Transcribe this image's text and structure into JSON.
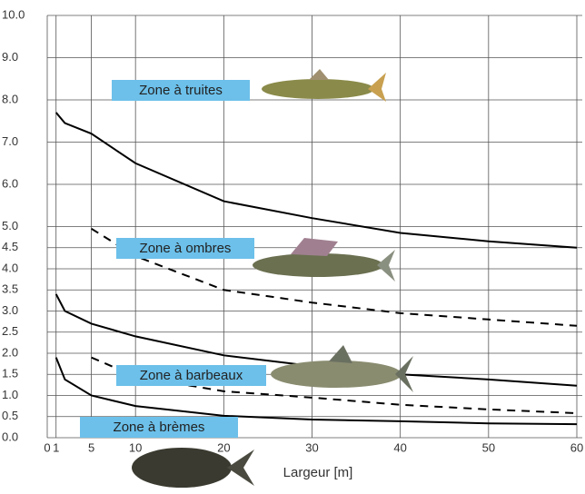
{
  "chart_data": {
    "type": "line",
    "x_label": "Largeur [m]",
    "x": [
      1,
      2,
      5,
      10,
      20,
      30,
      40,
      50,
      60
    ],
    "series": [
      {
        "color": "#000000",
        "style": "solid",
        "values": [
          7.7,
          7.45,
          7.2,
          6.5,
          5.6,
          5.2,
          4.85,
          4.65,
          4.5
        ]
      },
      {
        "color": "#000000",
        "style": "dashed",
        "values": [
          null,
          null,
          4.95,
          4.3,
          3.5,
          3.2,
          2.95,
          2.8,
          2.65
        ]
      },
      {
        "color": "#000000",
        "style": "solid",
        "values": [
          3.4,
          3.0,
          2.7,
          2.4,
          1.95,
          1.7,
          1.5,
          1.38,
          1.23
        ]
      },
      {
        "color": "#000000",
        "style": "dashed",
        "values": [
          null,
          null,
          1.9,
          1.45,
          1.1,
          0.95,
          0.78,
          0.67,
          0.58
        ]
      },
      {
        "color": "#000000",
        "style": "solid",
        "values": [
          1.9,
          1.38,
          1.0,
          0.75,
          0.52,
          0.43,
          0.39,
          0.34,
          0.32
        ]
      }
    ],
    "annotations": [
      "Zone à truites",
      "Zone à ombres",
      "Zone à barbeaux",
      "Zone à brèmes"
    ],
    "annotation_color": "#6cc0ea",
    "xlim": [
      0,
      60
    ],
    "xticks": [
      0,
      1,
      5,
      10,
      20,
      30,
      40,
      50,
      60
    ],
    "ylim": [
      0,
      10
    ],
    "yticks": [
      {
        "value": 0,
        "label": "0.0"
      },
      0.5,
      {
        "value": 1,
        "label": "1.0"
      },
      1.5,
      {
        "value": 2,
        "label": "2.0"
      },
      2.5,
      {
        "value": 3,
        "label": "3.0"
      },
      3.5,
      {
        "value": 4,
        "label": "4.0"
      },
      4.5,
      {
        "value": 5,
        "label": "5.0"
      },
      {
        "value": 6,
        "label": "6.0"
      },
      {
        "value": 7,
        "label": "7.0"
      },
      {
        "value": 8,
        "label": "8.0"
      },
      {
        "value": 9,
        "label": "9.0"
      },
      {
        "value": 10,
        "label": "10.0"
      }
    ],
    "grid": true
  }
}
